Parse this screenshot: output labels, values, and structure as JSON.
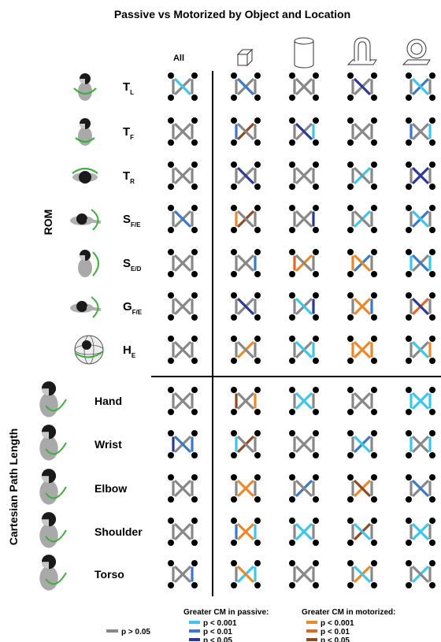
{
  "title": "Passive vs Motorized by Object and Location",
  "col_all_label": "All",
  "group_rom_label": "ROM",
  "group_cpl_label": "Cartesian Path Length",
  "columns": [
    {
      "icon": "cube-object-icon"
    },
    {
      "icon": "cylinder-object-icon"
    },
    {
      "icon": "handle-object-icon"
    },
    {
      "icon": "ring-object-icon"
    }
  ],
  "rom_rows": [
    {
      "main": "T",
      "sub": "L",
      "icon": "torso-lateral-bend-icon"
    },
    {
      "main": "T",
      "sub": "F",
      "icon": "torso-flexion-icon"
    },
    {
      "main": "T",
      "sub": "R",
      "icon": "torso-rotation-icon"
    },
    {
      "main": "S",
      "sub": "F/E",
      "icon": "shoulder-flexion-extension-icon"
    },
    {
      "main": "S",
      "sub": "E/D",
      "icon": "shoulder-elevation-depression-icon"
    },
    {
      "main": "G",
      "sub": "F/E",
      "icon": "grip-flexion-extension-icon"
    },
    {
      "main": "H",
      "sub": "E",
      "icon": "humeral-elevation-sphere-icon"
    }
  ],
  "cpl_rows": [
    {
      "label": "Hand",
      "icon": "hand-path-icon"
    },
    {
      "label": "Wrist",
      "icon": "wrist-path-icon"
    },
    {
      "label": "Elbow",
      "icon": "elbow-path-icon"
    },
    {
      "label": "Shoulder",
      "icon": "shoulder-path-icon"
    },
    {
      "label": "Torso",
      "icon": "torso-path-icon"
    }
  ],
  "legend": {
    "ns_label": "p > 0.05",
    "passive_title": "Greater CM in passive:",
    "motorized_title": "Greater CM in motorized:",
    "levels": [
      "p < 0.001",
      "p < 0.01",
      "p < 0.05"
    ]
  },
  "colors": {
    "ns": "#888888",
    "passive": [
      "#3ec6ea",
      "#3b78c8",
      "#2c3a96"
    ],
    "motorized": [
      "#e88a2c",
      "#e0662a",
      "#8e4a22"
    ],
    "green": "#3fae3f"
  },
  "chart_data": {
    "type": "significance-matrix",
    "columns": [
      "All",
      "cube",
      "cylinder",
      "handle",
      "ring"
    ],
    "rows": [
      "T_L",
      "T_F",
      "T_R",
      "S_F/E",
      "S_E/D",
      "G_F/E",
      "H_E",
      "Hand",
      "Wrist",
      "Elbow",
      "Shoulder",
      "Torso"
    ],
    "edge_order": [
      "left",
      "right",
      "diag_tl_br",
      "diag_bl_tr"
    ],
    "code_legend": {
      "0": "p > 0.05",
      "1": "passive p < 0.001",
      "2": "passive p < 0.01",
      "3": "passive p < 0.05",
      "4": "motorized p < 0.001",
      "5": "motorized p < 0.01",
      "6": "motorized p < 0.05"
    },
    "cells": [
      [
        [
          0,
          0,
          1,
          0
        ],
        [
          0,
          0,
          2,
          0
        ],
        [
          0,
          0,
          0,
          0
        ],
        [
          0,
          0,
          3,
          0
        ],
        [
          0,
          0,
          1,
          2
        ]
      ],
      [
        [
          0,
          0,
          0,
          0
        ],
        [
          2,
          0,
          0,
          6
        ],
        [
          0,
          1,
          3,
          0
        ],
        [
          0,
          0,
          0,
          0
        ],
        [
          2,
          1,
          0,
          0
        ]
      ],
      [
        [
          0,
          0,
          0,
          0
        ],
        [
          0,
          0,
          3,
          0
        ],
        [
          0,
          0,
          0,
          0
        ],
        [
          0,
          0,
          0,
          1
        ],
        [
          0,
          0,
          3,
          3
        ]
      ],
      [
        [
          0,
          0,
          2,
          0
        ],
        [
          4,
          0,
          0,
          6
        ],
        [
          0,
          3,
          0,
          0
        ],
        [
          0,
          0,
          0,
          1
        ],
        [
          0,
          0,
          1,
          2
        ]
      ],
      [
        [
          0,
          0,
          0,
          0
        ],
        [
          0,
          2,
          0,
          0
        ],
        [
          5,
          0,
          0,
          4
        ],
        [
          4,
          0,
          4,
          2
        ],
        [
          1,
          1,
          2,
          0
        ]
      ],
      [
        [
          0,
          0,
          0,
          0
        ],
        [
          0,
          0,
          3,
          0
        ],
        [
          0,
          3,
          1,
          0
        ],
        [
          0,
          2,
          4,
          4
        ],
        [
          0,
          0,
          3,
          5
        ]
      ],
      [
        [
          0,
          0,
          0,
          0
        ],
        [
          0,
          0,
          0,
          4
        ],
        [
          0,
          1,
          1,
          0
        ],
        [
          4,
          4,
          4,
          4
        ],
        [
          0,
          4,
          1,
          0
        ]
      ],
      [
        [
          0,
          0,
          0,
          0
        ],
        [
          6,
          4,
          0,
          0
        ],
        [
          0,
          0,
          1,
          1
        ],
        [
          0,
          0,
          0,
          0
        ],
        [
          1,
          1,
          1,
          1
        ]
      ],
      [
        [
          3,
          2,
          2,
          0
        ],
        [
          1,
          0,
          0,
          6
        ],
        [
          0,
          0,
          0,
          0
        ],
        [
          0,
          0,
          1,
          2
        ],
        [
          1,
          1,
          0,
          0
        ]
      ],
      [
        [
          0,
          0,
          0,
          0
        ],
        [
          0,
          0,
          4,
          4
        ],
        [
          0,
          0,
          0,
          2
        ],
        [
          0,
          0,
          6,
          4
        ],
        [
          0,
          0,
          2,
          0
        ]
      ],
      [
        [
          0,
          0,
          0,
          0
        ],
        [
          2,
          1,
          4,
          4
        ],
        [
          0,
          0,
          1,
          1
        ],
        [
          0,
          0,
          1,
          6
        ],
        [
          0,
          0,
          1,
          1
        ]
      ],
      [
        [
          0,
          2,
          0,
          0
        ],
        [
          0,
          1,
          4,
          1
        ],
        [
          0,
          0,
          0,
          0
        ],
        [
          0,
          0,
          1,
          4
        ],
        [
          0,
          0,
          0,
          1
        ]
      ]
    ]
  }
}
